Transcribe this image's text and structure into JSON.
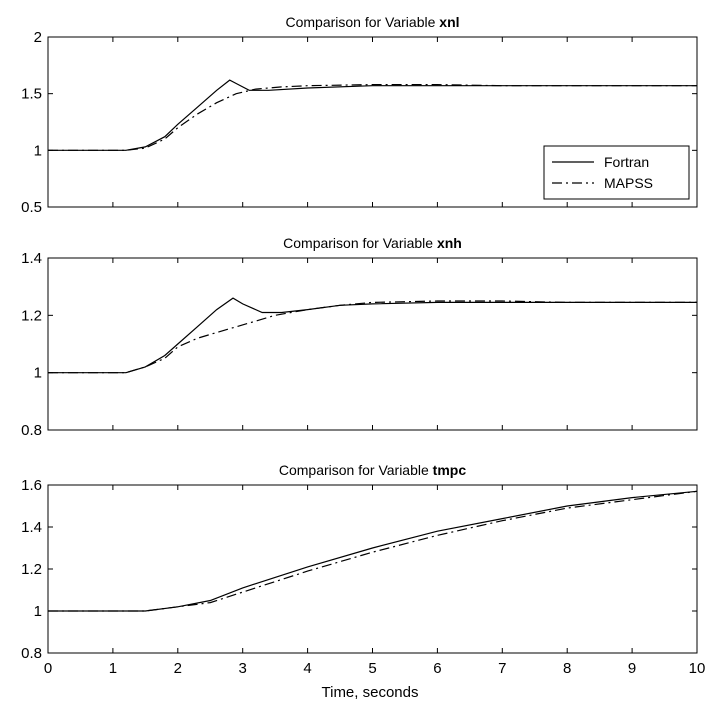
{
  "xlabel": "Time, seconds",
  "colors": {
    "fortran": "#000000",
    "mapss": "#000000",
    "axes": "#000000",
    "background": "#ffffff"
  },
  "chart_data": [
    {
      "type": "line",
      "title_prefix": "Comparison for Variable",
      "title_var": "xnl",
      "xlim": [
        0,
        10
      ],
      "ylim": [
        0.5,
        2
      ],
      "xticks": [
        0,
        1,
        2,
        3,
        4,
        5,
        6,
        7,
        8,
        9,
        10
      ],
      "yticks": [
        "0.5",
        "1",
        "1.5",
        "2"
      ],
      "show_xtick_labels": false,
      "grid": false,
      "legend": {
        "position": "right",
        "entries": [
          "Fortran",
          "MAPSS"
        ]
      },
      "series": [
        {
          "name": "Fortran",
          "style": "solid",
          "x": [
            0,
            1,
            1.2,
            1.5,
            1.8,
            2.0,
            2.3,
            2.6,
            2.8,
            2.9,
            3.1,
            3.4,
            4,
            5,
            6,
            7,
            8,
            9,
            10
          ],
          "y": [
            1.0,
            1.0,
            1.0,
            1.03,
            1.12,
            1.23,
            1.38,
            1.53,
            1.62,
            1.59,
            1.53,
            1.53,
            1.55,
            1.57,
            1.57,
            1.57,
            1.57,
            1.57,
            1.57
          ]
        },
        {
          "name": "MAPSS",
          "style": "dashdot",
          "x": [
            0,
            1,
            1.2,
            1.5,
            1.8,
            2.0,
            2.3,
            2.6,
            2.9,
            3.2,
            3.6,
            4,
            5,
            6,
            7,
            8,
            9,
            10
          ],
          "y": [
            1.0,
            1.0,
            1.0,
            1.02,
            1.1,
            1.2,
            1.32,
            1.42,
            1.5,
            1.54,
            1.56,
            1.57,
            1.58,
            1.58,
            1.57,
            1.57,
            1.57,
            1.57
          ]
        }
      ]
    },
    {
      "type": "line",
      "title_prefix": "Comparison for Variable",
      "title_var": "xnh",
      "xlim": [
        0,
        10
      ],
      "ylim": [
        0.8,
        1.4
      ],
      "xticks": [
        0,
        1,
        2,
        3,
        4,
        5,
        6,
        7,
        8,
        9,
        10
      ],
      "yticks": [
        "0.8",
        "1",
        "1.2",
        "1.4"
      ],
      "show_xtick_labels": false,
      "grid": false,
      "series": [
        {
          "name": "Fortran",
          "style": "solid",
          "x": [
            0,
            1,
            1.2,
            1.5,
            1.8,
            2.0,
            2.3,
            2.6,
            2.85,
            3.0,
            3.3,
            3.6,
            4,
            4.5,
            5,
            6,
            7,
            8,
            9,
            10
          ],
          "y": [
            1.0,
            1.0,
            1.0,
            1.02,
            1.06,
            1.1,
            1.16,
            1.22,
            1.26,
            1.24,
            1.21,
            1.21,
            1.22,
            1.235,
            1.24,
            1.245,
            1.245,
            1.245,
            1.245,
            1.245
          ]
        },
        {
          "name": "MAPSS",
          "style": "dashdot",
          "x": [
            0,
            1,
            1.2,
            1.5,
            1.8,
            2.0,
            2.3,
            2.6,
            2.9,
            3.2,
            3.5,
            4,
            4.5,
            5,
            6,
            7,
            8,
            9,
            10
          ],
          "y": [
            1.0,
            1.0,
            1.0,
            1.02,
            1.05,
            1.09,
            1.12,
            1.14,
            1.16,
            1.18,
            1.2,
            1.22,
            1.235,
            1.245,
            1.25,
            1.25,
            1.245,
            1.245,
            1.245
          ]
        }
      ]
    },
    {
      "type": "line",
      "title_prefix": "Comparison for Variable",
      "title_var": "tmpc",
      "xlim": [
        0,
        10
      ],
      "ylim": [
        0.8,
        1.6
      ],
      "xticks": [
        0,
        1,
        2,
        3,
        4,
        5,
        6,
        7,
        8,
        9,
        10
      ],
      "yticks": [
        "0.8",
        "1",
        "1.2",
        "1.4",
        "1.6"
      ],
      "show_xtick_labels": true,
      "grid": false,
      "series": [
        {
          "name": "Fortran",
          "style": "solid",
          "x": [
            0,
            1,
            1.5,
            2.0,
            2.5,
            3.0,
            3.5,
            4,
            5,
            6,
            7,
            8,
            9,
            10
          ],
          "y": [
            1.0,
            1.0,
            1.0,
            1.02,
            1.05,
            1.11,
            1.16,
            1.21,
            1.3,
            1.38,
            1.44,
            1.5,
            1.54,
            1.57
          ]
        },
        {
          "name": "MAPSS",
          "style": "dashdot",
          "x": [
            0,
            1,
            1.5,
            2.0,
            2.5,
            3.0,
            3.5,
            4,
            5,
            6,
            7,
            8,
            9,
            10
          ],
          "y": [
            1.0,
            1.0,
            1.0,
            1.02,
            1.04,
            1.09,
            1.14,
            1.19,
            1.28,
            1.36,
            1.43,
            1.49,
            1.53,
            1.57
          ]
        }
      ]
    }
  ]
}
